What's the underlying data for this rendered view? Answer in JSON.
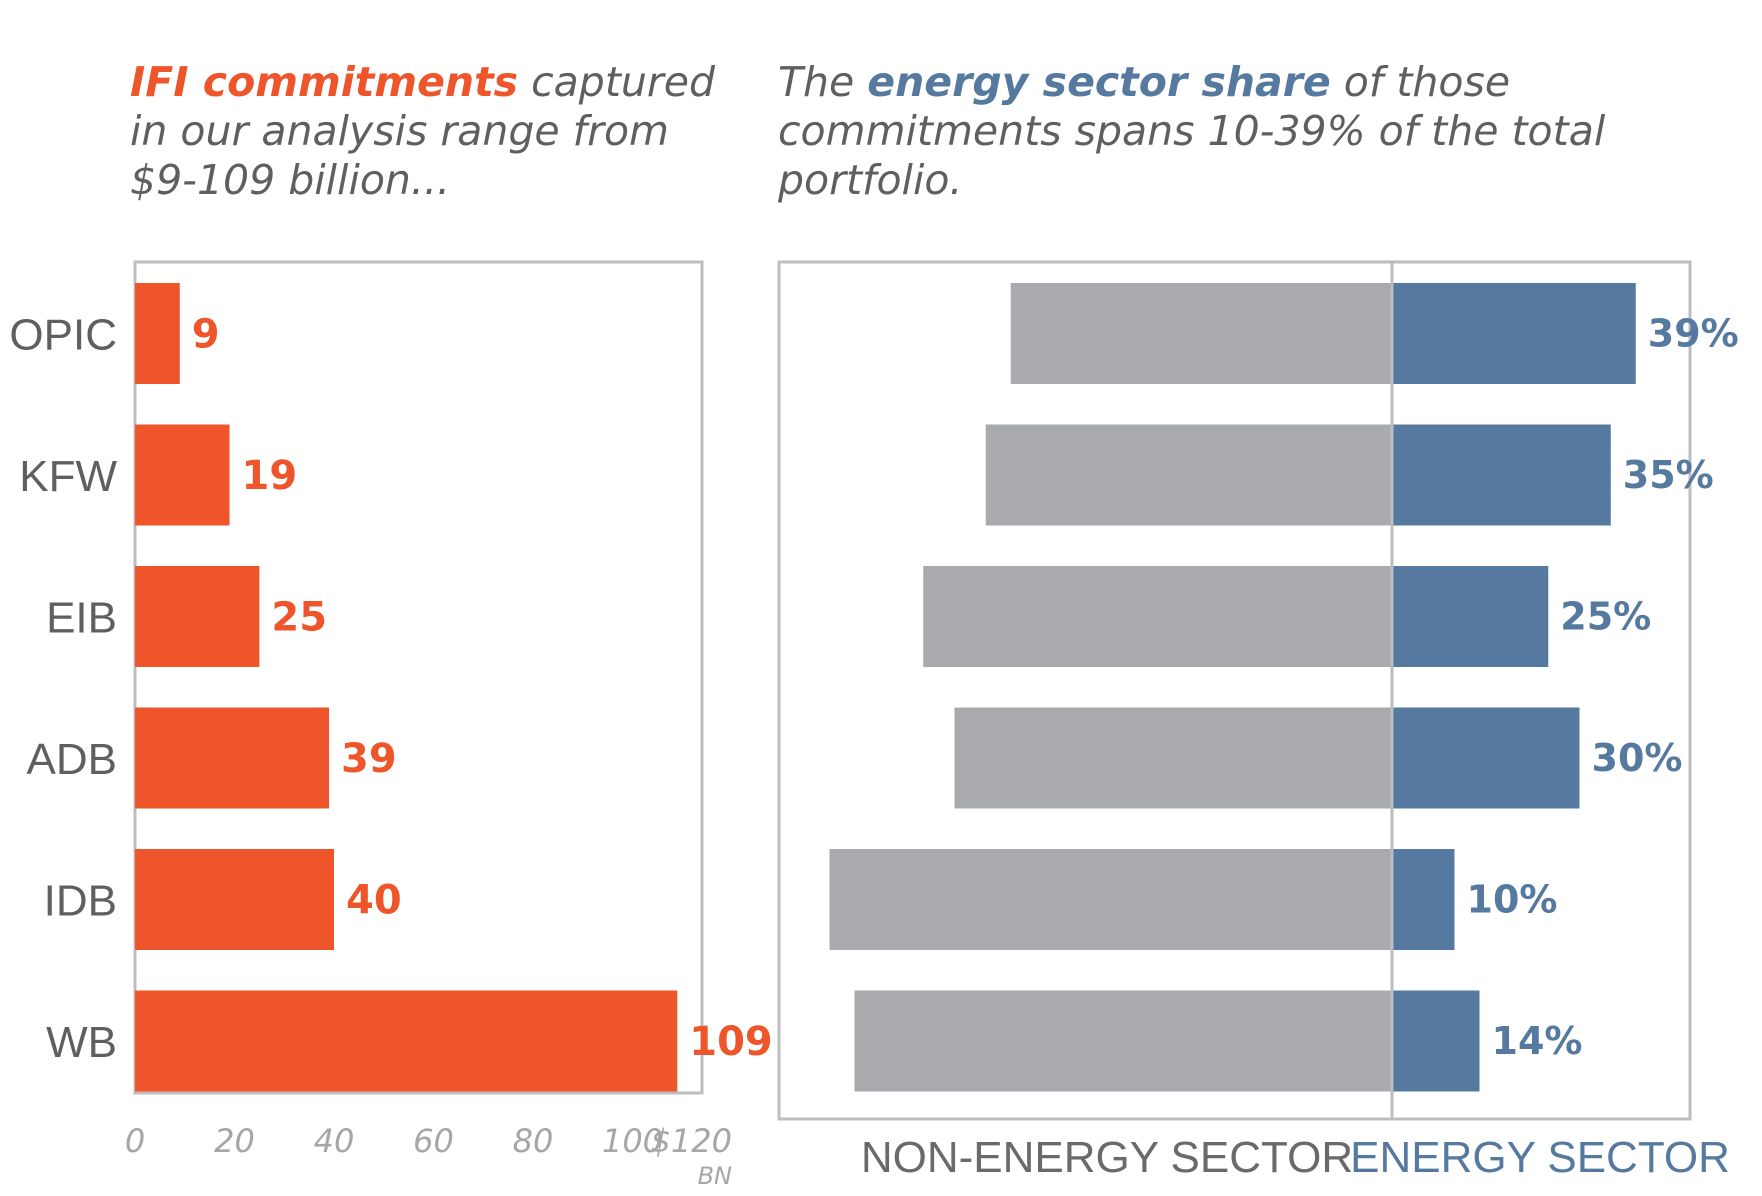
{
  "headings": {
    "left": {
      "accent": "IFI commitments",
      "rest": " captured in our analysis range from $9-109 billion..."
    },
    "right": {
      "pre": "The ",
      "accent": "energy sector share",
      "rest": " of those commitments spans 10-39% of the total portfolio."
    }
  },
  "colors": {
    "commitments": "#ee552b",
    "energy": "#55799f",
    "non_energy": "#a9aaad",
    "frame": "#bcbdc0"
  },
  "chart_data": [
    {
      "type": "bar",
      "orientation": "horizontal",
      "categories": [
        "OPIC",
        "KFW",
        "EIB",
        "ADB",
        "IDB",
        "WB"
      ],
      "values": [
        9,
        19,
        25,
        39,
        40,
        109
      ],
      "value_labels": [
        "9",
        "19",
        "25",
        "39",
        "40",
        "109"
      ],
      "xlim": [
        0,
        120
      ],
      "x_ticks": [
        "0",
        "20",
        "40",
        "60",
        "80",
        "100",
        "$120"
      ],
      "x_unit": "BN",
      "grid": false
    },
    {
      "type": "bar",
      "orientation": "horizontal",
      "stacked": "diverging",
      "categories": [
        "OPIC",
        "KFW",
        "EIB",
        "ADB",
        "IDB",
        "WB"
      ],
      "series": [
        {
          "name": "NON-ENERGY SECTOR",
          "values": [
            61,
            65,
            75,
            70,
            90,
            86
          ]
        },
        {
          "name": "ENERGY SECTOR",
          "values": [
            39,
            35,
            25,
            30,
            10,
            14
          ]
        }
      ],
      "value_labels": [
        "39%",
        "35%",
        "25%",
        "30%",
        "10%",
        "14%"
      ],
      "grid": false
    }
  ]
}
